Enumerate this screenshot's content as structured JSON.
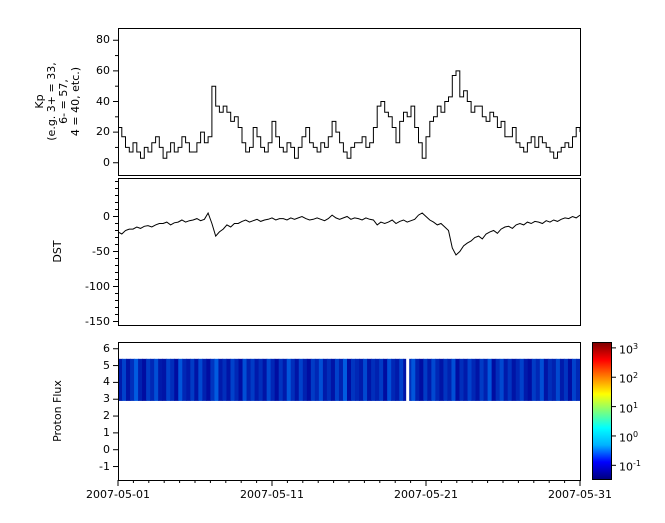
{
  "figure": {
    "x_tick_labels": [
      "2007-05-01",
      "2007-05-11",
      "2007-05-21",
      "2007-05-31"
    ],
    "background_color": "#ffffff",
    "line_color": "#000000"
  },
  "chart_data": [
    {
      "type": "line",
      "style": "step",
      "name": "kp-index",
      "ylabel_lines": [
        "Kp",
        "(e.g. 3+ = 33,",
        "6- = 57,",
        "4 = 40, etc.)"
      ],
      "ylim": [
        -8,
        88
      ],
      "yticks": [
        "0",
        "20",
        "40",
        "60",
        "80"
      ],
      "ytick_values": [
        0,
        20,
        40,
        60,
        80
      ],
      "minor_step": 10,
      "x_range": [
        "2007-05-01",
        "2007-05-31"
      ],
      "samples_per_day": 4,
      "values": [
        23,
        17,
        10,
        7,
        13,
        7,
        3,
        10,
        7,
        13,
        17,
        10,
        3,
        7,
        13,
        7,
        10,
        17,
        13,
        7,
        7,
        13,
        20,
        13,
        17,
        50,
        37,
        33,
        37,
        33,
        27,
        30,
        23,
        13,
        7,
        10,
        23,
        17,
        10,
        7,
        13,
        27,
        17,
        10,
        7,
        13,
        10,
        3,
        10,
        17,
        23,
        13,
        10,
        7,
        13,
        10,
        17,
        27,
        20,
        13,
        7,
        3,
        10,
        13,
        13,
        17,
        10,
        13,
        23,
        37,
        40,
        33,
        30,
        23,
        13,
        27,
        33,
        30,
        37,
        23,
        13,
        3,
        17,
        27,
        30,
        37,
        33,
        40,
        43,
        57,
        60,
        43,
        47,
        40,
        33,
        37,
        37,
        30,
        27,
        33,
        30,
        23,
        27,
        17,
        17,
        23,
        13,
        10,
        7,
        13,
        17,
        10,
        17,
        13,
        10,
        7,
        3,
        7,
        10,
        13,
        10,
        17,
        23,
        20
      ]
    },
    {
      "type": "line",
      "style": "linear",
      "name": "dst-index",
      "ylabel": "DST",
      "ylim": [
        -155,
        55
      ],
      "yticks": [
        "0",
        "-50",
        "-100",
        "-150"
      ],
      "ytick_values": [
        0,
        -50,
        -100,
        -150
      ],
      "minor_step": 10,
      "x_range": [
        "2007-05-01",
        "2007-05-31"
      ],
      "samples_per_day": 4,
      "values": [
        -22,
        -25,
        -20,
        -18,
        -18,
        -15,
        -17,
        -14,
        -13,
        -15,
        -12,
        -10,
        -10,
        -8,
        -12,
        -9,
        -8,
        -5,
        -8,
        -6,
        -5,
        -3,
        -6,
        -4,
        5,
        -10,
        -28,
        -22,
        -18,
        -12,
        -15,
        -10,
        -10,
        -7,
        -5,
        -8,
        -6,
        -4,
        -7,
        -5,
        -4,
        -2,
        -5,
        -3,
        -3,
        -5,
        -2,
        -4,
        -2,
        0,
        -3,
        -5,
        -4,
        -2,
        -4,
        -6,
        -3,
        2,
        -2,
        -4,
        -2,
        0,
        -4,
        -2,
        -3,
        -5,
        -2,
        -4,
        -5,
        -12,
        -8,
        -10,
        -8,
        -5,
        -10,
        -7,
        -5,
        -8,
        -6,
        -4,
        2,
        5,
        0,
        -5,
        -8,
        -12,
        -10,
        -15,
        -20,
        -45,
        -55,
        -50,
        -42,
        -38,
        -35,
        -30,
        -28,
        -32,
        -25,
        -22,
        -20,
        -24,
        -18,
        -15,
        -14,
        -17,
        -12,
        -10,
        -12,
        -8,
        -10,
        -7,
        -8,
        -10,
        -6,
        -8,
        -5,
        -7,
        -4,
        -2,
        -3,
        0,
        -2,
        2
      ]
    },
    {
      "type": "heatmap",
      "name": "proton-flux",
      "ylabel": "Proton Flux",
      "ylim": [
        -1.8,
        6.4
      ],
      "yticks": [
        "-1",
        "0",
        "1",
        "2",
        "3",
        "4",
        "5",
        "6"
      ],
      "ytick_values": [
        -1,
        0,
        1,
        2,
        3,
        4,
        5,
        6
      ],
      "x_range": [
        "2007-05-01",
        "2007-05-31"
      ],
      "band": {
        "y_range": [
          2.9,
          5.4
        ],
        "gap_fraction": 0.627,
        "column_intensities": [
          0.2,
          0.5,
          0.15,
          0.35,
          0.7,
          0.25,
          0.1,
          0.45,
          0.3,
          0.6,
          0.2,
          0.15,
          0.5,
          0.35,
          0.1,
          0.65,
          0.3,
          0.2,
          0.45,
          0.15,
          0.55,
          0.25,
          0.1,
          0.4,
          0.7,
          0.2,
          0.35,
          0.15,
          0.5,
          0.3,
          0.1,
          0.6,
          0.25,
          0.45,
          0.2,
          0.35,
          0.15,
          0.55,
          0.3,
          0.1,
          0.4,
          0.2,
          0.65,
          0.35,
          0.15,
          0.5,
          0.25,
          0.1,
          0.45,
          0.3,
          0.6,
          0.2,
          0.35,
          0.15,
          0.5,
          0.25,
          0.7,
          0.1,
          0.4,
          0.3,
          0.2,
          0.55,
          0.15,
          0.35,
          0.25,
          0.45,
          0.1,
          0.6,
          0.3,
          0.2,
          0.5,
          0.15,
          0.35,
          0.65,
          0.25,
          0.1,
          0.45,
          0.2,
          0.55,
          0.3,
          0.15,
          0.4,
          0.25,
          0.6,
          0.1,
          0.35,
          0.2,
          0.5,
          0.3,
          0.15,
          0.45,
          0.25,
          0.65,
          0.1,
          0.35,
          0.55,
          0.2,
          0.4,
          0.15,
          0.3,
          0.5,
          0.2,
          0.1,
          0.45,
          0.3,
          0.6,
          0.15,
          0.35,
          0.25,
          0.55,
          0.2,
          0.4,
          0.1,
          0.5,
          0.3
        ]
      },
      "colorbar": {
        "scale": "log",
        "tick_exponents": [
          "3",
          "2",
          "1",
          "0",
          "-1"
        ],
        "tick_values": [
          3,
          2,
          1,
          0,
          -1
        ],
        "log_range": [
          -1.5,
          3.2
        ],
        "colors": [
          "#00007f",
          "#0000ff",
          "#00b2ff",
          "#00ffff",
          "#7dff7a",
          "#ffff00",
          "#ff8000",
          "#ff0000",
          "#800000"
        ]
      }
    }
  ]
}
